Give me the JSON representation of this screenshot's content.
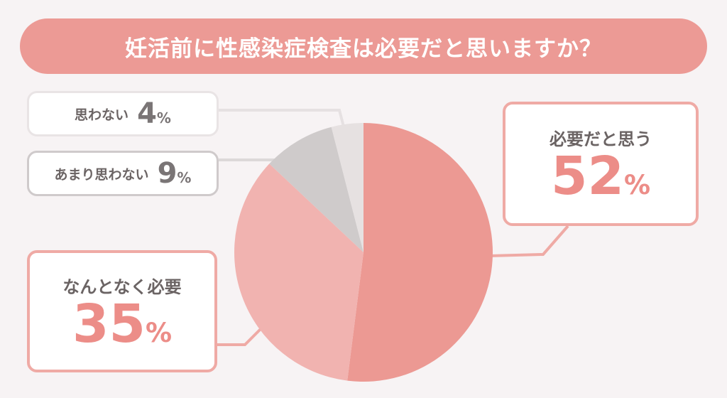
{
  "title": "妊活前に性感染症検査は必要だと思いますか？",
  "chart_data": {
    "type": "pie",
    "title": "妊活前に性感染症検査は必要だと思いますか？",
    "slices": [
      {
        "label": "必要だと思う",
        "value": 52,
        "display": "52",
        "color": "#ec9993"
      },
      {
        "label": "なんとなく必要",
        "value": 35,
        "display": "35",
        "color": "#f1b3b0"
      },
      {
        "label": "あまり思わない",
        "value": 9,
        "display": "9",
        "color": "#cfcbcb"
      },
      {
        "label": "思わない",
        "value": 4,
        "display": "4",
        "color": "#e6e1e1"
      }
    ],
    "unit": "%",
    "start": "top",
    "direction": "clockwise"
  }
}
